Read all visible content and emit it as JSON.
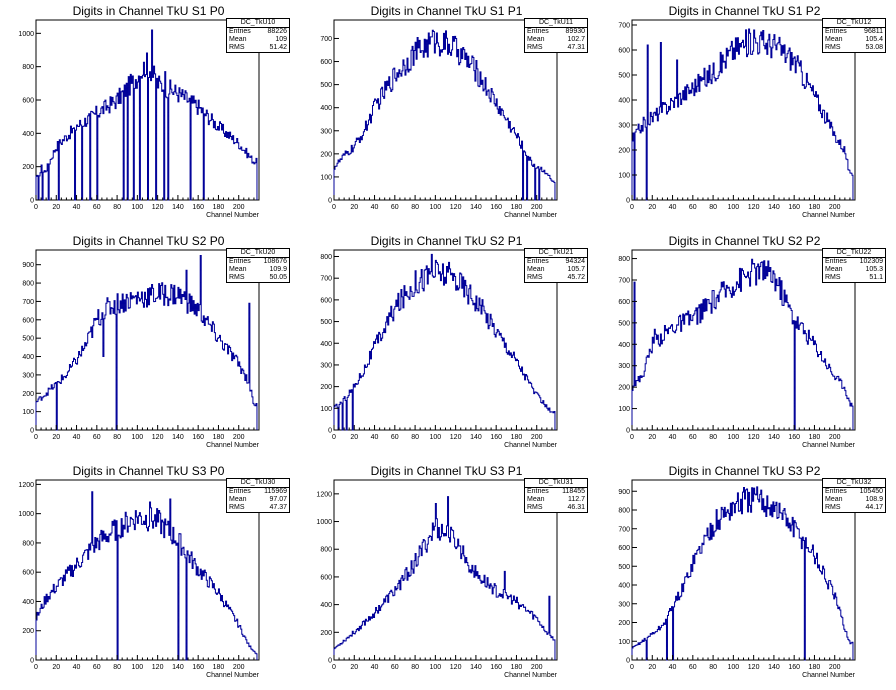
{
  "chart_data": [
    {
      "type": "histogram",
      "title": "Digits in Channel TkU S1 P0",
      "xlabel": "Channel Number",
      "ylabel": "",
      "xlim": [
        0,
        220
      ],
      "ylim": [
        0,
        1080
      ],
      "xticks": [
        0,
        20,
        40,
        60,
        80,
        100,
        120,
        140,
        160,
        180,
        200
      ],
      "yticks": [
        0,
        200,
        400,
        600,
        800,
        1000
      ],
      "stats": {
        "name": "DC_TkU10",
        "entries": "88226",
        "mean": "109",
        "rms": "51.42"
      },
      "envelope": [
        [
          0,
          130
        ],
        [
          10,
          180
        ],
        [
          20,
          320
        ],
        [
          40,
          440
        ],
        [
          60,
          520
        ],
        [
          80,
          600
        ],
        [
          100,
          740
        ],
        [
          110,
          820
        ],
        [
          120,
          700
        ],
        [
          140,
          640
        ],
        [
          160,
          560
        ],
        [
          180,
          440
        ],
        [
          200,
          340
        ],
        [
          215,
          230
        ]
      ],
      "dips": [
        2,
        6,
        12,
        22,
        38,
        45,
        53,
        60,
        86,
        90,
        96,
        102,
        110,
        118,
        126,
        130,
        152,
        165
      ],
      "spikes": [
        [
          114,
          1020
        ],
        [
          127,
          770
        ],
        [
          5,
          210
        ],
        [
          40,
          450
        ]
      ]
    },
    {
      "type": "histogram",
      "title": "Digits in Channel TkU S1 P1",
      "xlabel": "Channel Number",
      "ylabel": "",
      "xlim": [
        0,
        220
      ],
      "ylim": [
        0,
        780
      ],
      "xticks": [
        0,
        20,
        40,
        60,
        80,
        100,
        120,
        140,
        160,
        180,
        200
      ],
      "yticks": [
        0,
        100,
        200,
        300,
        400,
        500,
        600,
        700
      ],
      "stats": {
        "name": "DC_TkU11",
        "entries": "89930",
        "mean": "102.7",
        "rms": "47.31"
      },
      "envelope": [
        [
          0,
          140
        ],
        [
          10,
          190
        ],
        [
          20,
          230
        ],
        [
          30,
          300
        ],
        [
          40,
          400
        ],
        [
          60,
          540
        ],
        [
          80,
          640
        ],
        [
          100,
          690
        ],
        [
          120,
          660
        ],
        [
          140,
          560
        ],
        [
          160,
          420
        ],
        [
          180,
          280
        ],
        [
          195,
          160
        ],
        [
          210,
          120
        ],
        [
          215,
          80
        ]
      ],
      "dips": [
        186,
        190,
        198,
        202
      ],
      "spikes": [
        [
          98,
          730
        ],
        [
          120,
          700
        ]
      ]
    },
    {
      "type": "histogram",
      "title": "Digits in Channel TkU S1 P2",
      "xlabel": "Channel Number",
      "ylabel": "",
      "xlim": [
        0,
        220
      ],
      "ylim": [
        0,
        720
      ],
      "xticks": [
        0,
        20,
        40,
        60,
        80,
        100,
        120,
        140,
        160,
        180,
        200
      ],
      "yticks": [
        0,
        100,
        200,
        300,
        400,
        500,
        600,
        700
      ],
      "stats": {
        "name": "DC_TkU12",
        "entries": "96811",
        "mean": "105.4",
        "rms": "53.08"
      },
      "envelope": [
        [
          0,
          240
        ],
        [
          10,
          300
        ],
        [
          20,
          330
        ],
        [
          40,
          390
        ],
        [
          60,
          450
        ],
        [
          80,
          510
        ],
        [
          100,
          600
        ],
        [
          120,
          640
        ],
        [
          140,
          620
        ],
        [
          160,
          560
        ],
        [
          180,
          420
        ],
        [
          200,
          260
        ],
        [
          210,
          200
        ],
        [
          215,
          100
        ]
      ],
      "dips": [
        2,
        14
      ],
      "spikes": [
        [
          15,
          620
        ],
        [
          28,
          630
        ],
        [
          44,
          560
        ],
        [
          120,
          680
        ]
      ]
    },
    {
      "type": "histogram",
      "title": "Digits in Channel TkU S2 P0",
      "xlabel": "Channel Number",
      "ylabel": "",
      "xlim": [
        0,
        220
      ],
      "ylim": [
        0,
        980
      ],
      "xticks": [
        0,
        20,
        40,
        60,
        80,
        100,
        120,
        140,
        160,
        180,
        200
      ],
      "yticks": [
        0,
        100,
        200,
        300,
        400,
        500,
        600,
        700,
        800,
        900
      ],
      "stats": {
        "name": "DC_TkU20",
        "entries": "108676",
        "mean": "109.9",
        "rms": "50.05"
      },
      "envelope": [
        [
          0,
          150
        ],
        [
          10,
          200
        ],
        [
          20,
          250
        ],
        [
          30,
          300
        ],
        [
          40,
          380
        ],
        [
          50,
          470
        ],
        [
          60,
          600
        ],
        [
          70,
          660
        ],
        [
          80,
          690
        ],
        [
          100,
          720
        ],
        [
          120,
          740
        ],
        [
          140,
          740
        ],
        [
          160,
          650
        ],
        [
          180,
          500
        ],
        [
          200,
          360
        ],
        [
          210,
          260
        ],
        [
          215,
          140
        ]
      ],
      "dips": [
        20,
        79
      ],
      "spikes": [
        [
          148,
          870
        ],
        [
          162,
          950
        ],
        [
          210,
          690
        ],
        [
          66,
          400
        ]
      ]
    },
    {
      "type": "histogram",
      "title": "Digits in Channel TkU S2 P1",
      "xlabel": "Channel Number",
      "ylabel": "",
      "xlim": [
        0,
        220
      ],
      "ylim": [
        0,
        830
      ],
      "xticks": [
        0,
        20,
        40,
        60,
        80,
        100,
        120,
        140,
        160,
        180,
        200
      ],
      "yticks": [
        0,
        100,
        200,
        300,
        400,
        500,
        600,
        700,
        800
      ],
      "stats": {
        "name": "DC_TkU21",
        "entries": "94324",
        "mean": "105.7",
        "rms": "45.72"
      },
      "envelope": [
        [
          0,
          100
        ],
        [
          10,
          140
        ],
        [
          20,
          200
        ],
        [
          30,
          280
        ],
        [
          40,
          380
        ],
        [
          60,
          560
        ],
        [
          80,
          680
        ],
        [
          100,
          730
        ],
        [
          120,
          700
        ],
        [
          140,
          600
        ],
        [
          160,
          460
        ],
        [
          180,
          320
        ],
        [
          200,
          160
        ],
        [
          215,
          80
        ]
      ],
      "dips": [
        4,
        8,
        12,
        18
      ],
      "spikes": [
        [
          96,
          810
        ]
      ]
    },
    {
      "type": "histogram",
      "title": "Digits in Channel TkU S2 P2",
      "xlabel": "Channel Number",
      "ylabel": "",
      "xlim": [
        0,
        220
      ],
      "ylim": [
        0,
        840
      ],
      "xticks": [
        0,
        20,
        40,
        60,
        80,
        100,
        120,
        140,
        160,
        180,
        200
      ],
      "yticks": [
        0,
        100,
        200,
        300,
        400,
        500,
        600,
        700,
        800
      ],
      "stats": {
        "name": "DC_TkU22",
        "entries": "102309",
        "mean": "105.3",
        "rms": "51.1"
      },
      "envelope": [
        [
          0,
          200
        ],
        [
          10,
          250
        ],
        [
          20,
          400
        ],
        [
          40,
          480
        ],
        [
          60,
          520
        ],
        [
          80,
          600
        ],
        [
          100,
          680
        ],
        [
          120,
          740
        ],
        [
          140,
          720
        ],
        [
          160,
          520
        ],
        [
          180,
          400
        ],
        [
          200,
          250
        ],
        [
          210,
          200
        ],
        [
          215,
          120
        ]
      ],
      "dips": [
        160
      ],
      "spikes": [
        [
          2,
          690
        ],
        [
          22,
          470
        ],
        [
          130,
          790
        ]
      ]
    },
    {
      "type": "histogram",
      "title": "Digits in Channel TkU S3 P0",
      "xlabel": "Channel Number",
      "ylabel": "",
      "xlim": [
        0,
        220
      ],
      "ylim": [
        0,
        1230
      ],
      "xticks": [
        0,
        20,
        40,
        60,
        80,
        100,
        120,
        140,
        160,
        180,
        200
      ],
      "yticks": [
        0,
        200,
        400,
        600,
        800,
        1000,
        1200
      ],
      "stats": {
        "name": "DC_TkU30",
        "entries": "115969",
        "mean": "97.07",
        "rms": "47.37"
      },
      "envelope": [
        [
          0,
          280
        ],
        [
          10,
          420
        ],
        [
          20,
          500
        ],
        [
          40,
          650
        ],
        [
          60,
          800
        ],
        [
          80,
          900
        ],
        [
          100,
          980
        ],
        [
          120,
          950
        ],
        [
          140,
          820
        ],
        [
          160,
          620
        ],
        [
          180,
          460
        ],
        [
          200,
          240
        ],
        [
          210,
          100
        ],
        [
          218,
          40
        ]
      ],
      "dips": [
        80,
        140,
        148
      ],
      "spikes": [
        [
          55,
          1150
        ],
        [
          132,
          1100
        ],
        [
          112,
          1080
        ]
      ]
    },
    {
      "type": "histogram",
      "title": "Digits in Channel TkU S3 P1",
      "xlabel": "Channel Number",
      "ylabel": "",
      "xlim": [
        0,
        220
      ],
      "ylim": [
        0,
        1300
      ],
      "xticks": [
        0,
        20,
        40,
        60,
        80,
        100,
        120,
        140,
        160,
        180,
        200
      ],
      "yticks": [
        0,
        200,
        400,
        600,
        800,
        1000,
        1200
      ],
      "stats": {
        "name": "DC_TkU31",
        "entries": "118455",
        "mean": "112.7",
        "rms": "46.31"
      },
      "envelope": [
        [
          0,
          80
        ],
        [
          10,
          140
        ],
        [
          20,
          200
        ],
        [
          40,
          340
        ],
        [
          60,
          500
        ],
        [
          80,
          700
        ],
        [
          100,
          960
        ],
        [
          120,
          860
        ],
        [
          140,
          620
        ],
        [
          160,
          500
        ],
        [
          180,
          420
        ],
        [
          200,
          300
        ],
        [
          212,
          180
        ],
        [
          218,
          140
        ]
      ],
      "dips": [],
      "spikes": [
        [
          100,
          1130
        ],
        [
          112,
          1180
        ],
        [
          212,
          460
        ],
        [
          168,
          640
        ]
      ]
    },
    {
      "type": "histogram",
      "title": "Digits in Channel TkU S3 P2",
      "xlabel": "Channel Number",
      "ylabel": "",
      "xlim": [
        0,
        220
      ],
      "ylim": [
        0,
        960
      ],
      "xticks": [
        0,
        20,
        40,
        60,
        80,
        100,
        120,
        140,
        160,
        180,
        200
      ],
      "yticks": [
        0,
        100,
        200,
        300,
        400,
        500,
        600,
        700,
        800,
        900
      ],
      "stats": {
        "name": "DC_TkU32",
        "entries": "105450",
        "mean": "108.9",
        "rms": "44.17"
      },
      "envelope": [
        [
          0,
          60
        ],
        [
          10,
          100
        ],
        [
          20,
          140
        ],
        [
          30,
          180
        ],
        [
          40,
          280
        ],
        [
          50,
          380
        ],
        [
          60,
          520
        ],
        [
          80,
          720
        ],
        [
          100,
          820
        ],
        [
          120,
          860
        ],
        [
          140,
          820
        ],
        [
          160,
          700
        ],
        [
          180,
          560
        ],
        [
          200,
          340
        ],
        [
          210,
          170
        ],
        [
          215,
          90
        ]
      ],
      "dips": [
        14,
        34,
        40,
        170
      ],
      "spikes": [
        [
          110,
          920
        ]
      ]
    }
  ]
}
